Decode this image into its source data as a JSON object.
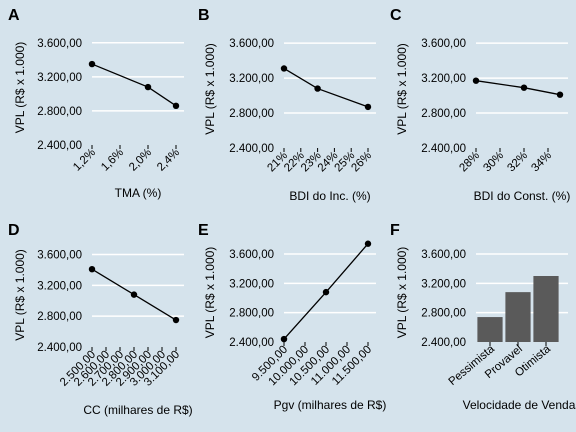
{
  "chart_data": [
    {
      "panel": "A",
      "type": "line",
      "x": [
        1.2,
        2.0,
        2.4
      ],
      "y": [
        3350,
        3080,
        2860
      ],
      "xticks": [
        1.2,
        1.6,
        2.0,
        2.4
      ],
      "xtick_labels": [
        "1,2%",
        "1,6%",
        "2,0%",
        "2,4%"
      ],
      "xlim": [
        1.2,
        2.4
      ],
      "yticks": [
        2400,
        2800,
        3200,
        3600
      ],
      "ytick_labels": [
        "2.400,00",
        "2.800,00",
        "3.200,00",
        "3.600,00"
      ],
      "ylim": [
        2400,
        3750
      ],
      "xlabel": "TMA (%)",
      "ylabel": "VPL (R$ x 1.000)",
      "grid": "horizontal"
    },
    {
      "panel": "B",
      "type": "line",
      "x": [
        21,
        23,
        26
      ],
      "y": [
        3310,
        3080,
        2870
      ],
      "xticks": [
        21,
        22,
        23,
        24,
        25,
        26
      ],
      "xtick_labels": [
        "21%",
        "22%",
        "23%",
        "24%",
        "25%",
        "26%"
      ],
      "xlim": [
        21,
        26
      ],
      "yticks": [
        2400,
        2800,
        3200,
        3600
      ],
      "ytick_labels": [
        "2.400,00",
        "2.800,00",
        "3.200,00",
        "3.600,00"
      ],
      "ylim": [
        2400,
        3750
      ],
      "xlabel": "BDI do Inc. (%)",
      "ylabel": "VPL (R$ x 1.000)",
      "grid": "horizontal"
    },
    {
      "panel": "C",
      "type": "line",
      "x": [
        28,
        32,
        35
      ],
      "y": [
        3170,
        3090,
        3010
      ],
      "xticks": [
        28,
        30,
        32,
        34
      ],
      "xtick_labels": [
        "28%",
        "30%",
        "32%",
        "34%"
      ],
      "xlim": [
        28,
        35
      ],
      "yticks": [
        2400,
        2800,
        3200,
        3600
      ],
      "ytick_labels": [
        "2.400,00",
        "2.800,00",
        "3.200,00",
        "3.600,00"
      ],
      "ylim": [
        2400,
        3750
      ],
      "xlabel": "BDI do Const. (%)",
      "ylabel": "VPL (R$ x 1.000)",
      "grid": "horizontal"
    },
    {
      "panel": "D",
      "type": "line",
      "x": [
        2500,
        2800,
        3100
      ],
      "y": [
        3410,
        3080,
        2750
      ],
      "xticks": [
        2500,
        2600,
        2700,
        2800,
        2900,
        3000,
        3100
      ],
      "xtick_labels": [
        "2.500,00",
        "2.600,00",
        "2.700,00",
        "2.800,00",
        "2.900,00",
        "3.000,00",
        "3.100,00"
      ],
      "xlim": [
        2500,
        3100
      ],
      "yticks": [
        2400,
        2800,
        3200,
        3600
      ],
      "ytick_labels": [
        "2.400,00",
        "2.800,00",
        "3.200,00",
        "3.600,00"
      ],
      "ylim": [
        2400,
        3750
      ],
      "xlabel": "CC (milhares de R$)",
      "ylabel": "VPL (R$ x 1.000)",
      "grid": "horizontal"
    },
    {
      "panel": "E",
      "type": "line",
      "x": [
        9500,
        10500,
        11500
      ],
      "y": [
        2440,
        3080,
        3740
      ],
      "xticks": [
        9500,
        10000,
        10500,
        11000,
        11500
      ],
      "xtick_labels": [
        "9.500,00",
        "10.000,00",
        "10.500,00",
        "11.000,00",
        "11.500,00"
      ],
      "xlim": [
        9500,
        11500
      ],
      "yticks": [
        2400,
        2800,
        3200,
        3600
      ],
      "ytick_labels": [
        "2.400,00",
        "2.800,00",
        "3.200,00",
        "3.600,00"
      ],
      "ylim": [
        2400,
        3750
      ],
      "xlabel": "Pgv (milhares de R$)",
      "ylabel": "VPL (R$ x 1.000)",
      "grid": "horizontal"
    },
    {
      "panel": "F",
      "type": "bar",
      "categories": [
        "Pessimista",
        "Provavel",
        "Otimista"
      ],
      "values": [
        2740,
        3080,
        3300
      ],
      "yticks": [
        2400,
        2800,
        3200,
        3600
      ],
      "ytick_labels": [
        "2.400,00",
        "2.800,00",
        "3.200,00",
        "3.600,00"
      ],
      "ylim": [
        2400,
        3750
      ],
      "xlabel": "Velocidade de Vendas",
      "ylabel": "VPL (R$ x 1.000)",
      "grid": "horizontal",
      "bar_color": "#5a5a5a"
    }
  ]
}
